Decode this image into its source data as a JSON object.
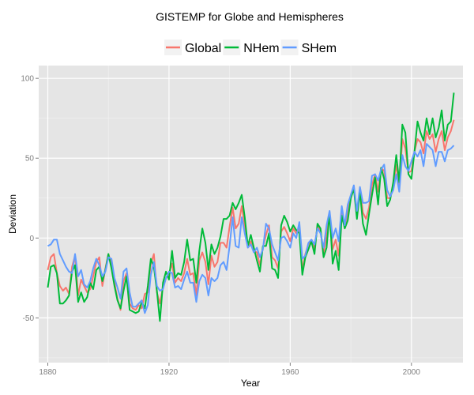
{
  "chart_data": {
    "type": "line",
    "title": "GISTEMP for Globe and Hemispheres",
    "xlabel": "Year",
    "ylabel": "Deviation",
    "xlim": [
      1877,
      2017
    ],
    "ylim": [
      -78,
      108
    ],
    "x_ticks": [
      1880,
      1920,
      1960,
      2000
    ],
    "y_ticks": [
      -50,
      0,
      50,
      100
    ],
    "grid": true,
    "legend": "top",
    "background": "#E5E5E5",
    "x": [
      1880,
      1881,
      1882,
      1883,
      1884,
      1885,
      1886,
      1887,
      1888,
      1889,
      1890,
      1891,
      1892,
      1893,
      1894,
      1895,
      1896,
      1897,
      1898,
      1899,
      1900,
      1901,
      1902,
      1903,
      1904,
      1905,
      1906,
      1907,
      1908,
      1909,
      1910,
      1911,
      1912,
      1913,
      1914,
      1915,
      1916,
      1917,
      1918,
      1919,
      1920,
      1921,
      1922,
      1923,
      1924,
      1925,
      1926,
      1927,
      1928,
      1929,
      1930,
      1931,
      1932,
      1933,
      1934,
      1935,
      1936,
      1937,
      1938,
      1939,
      1940,
      1941,
      1942,
      1943,
      1944,
      1945,
      1946,
      1947,
      1948,
      1949,
      1950,
      1951,
      1952,
      1953,
      1954,
      1955,
      1956,
      1957,
      1958,
      1959,
      1960,
      1961,
      1962,
      1963,
      1964,
      1965,
      1966,
      1967,
      1968,
      1969,
      1970,
      1971,
      1972,
      1973,
      1974,
      1975,
      1976,
      1977,
      1978,
      1979,
      1980,
      1981,
      1982,
      1983,
      1984,
      1985,
      1986,
      1987,
      1988,
      1989,
      1990,
      1991,
      1992,
      1993,
      1994,
      1995,
      1996,
      1997,
      1998,
      1999,
      2000,
      2001,
      2002,
      2003,
      2004,
      2005,
      2006,
      2007,
      2008,
      2009,
      2010,
      2011,
      2012,
      2013,
      2014
    ],
    "series": [
      {
        "name": "Global",
        "color": "#F8766D",
        "values": [
          -20,
          -12,
          -10,
          -22,
          -30,
          -33,
          -31,
          -35,
          -18,
          -11,
          -36,
          -26,
          -30,
          -34,
          -32,
          -24,
          -15,
          -12,
          -30,
          -19,
          -10,
          -16,
          -28,
          -38,
          -45,
          -27,
          -22,
          -41,
          -44,
          -45,
          -42,
          -44,
          -35,
          -34,
          -16,
          -10,
          -34,
          -41,
          -31,
          -25,
          -22,
          -16,
          -28,
          -25,
          -27,
          -22,
          -13,
          -23,
          -22,
          -36,
          -14,
          -9,
          -15,
          -29,
          -11,
          -18,
          -15,
          -3,
          -3,
          -6,
          7,
          19,
          6,
          9,
          20,
          8,
          -6,
          -2,
          -8,
          -9,
          -17,
          -6,
          2,
          8,
          -12,
          -14,
          -19,
          4,
          7,
          3,
          -2,
          6,
          3,
          6,
          -20,
          -10,
          -4,
          -1,
          -7,
          8,
          4,
          -9,
          1,
          16,
          -7,
          -1,
          -11,
          17,
          7,
          16,
          27,
          32,
          14,
          31,
          16,
          12,
          19,
          33,
          40,
          29,
          44,
          42,
          25,
          25,
          33,
          46,
          32,
          62,
          56,
          41,
          42,
          54,
          62,
          60,
          53,
          67,
          62,
          65,
          54,
          62,
          67,
          55,
          63,
          67,
          74
        ]
      },
      {
        "name": "NHem",
        "color": "#00BA38",
        "values": [
          -31,
          -18,
          -17,
          -22,
          -41,
          -41,
          -39,
          -36,
          -21,
          -17,
          -40,
          -34,
          -40,
          -37,
          -28,
          -32,
          -20,
          -18,
          -27,
          -20,
          -10,
          -19,
          -30,
          -39,
          -44,
          -33,
          -24,
          -45,
          -46,
          -47,
          -46,
          -40,
          -44,
          -30,
          -13,
          -18,
          -33,
          -52,
          -28,
          -21,
          -26,
          -8,
          -25,
          -22,
          -23,
          -15,
          -1,
          -14,
          -13,
          -28,
          -8,
          6,
          -3,
          -20,
          -4,
          -10,
          -6,
          1,
          12,
          12,
          14,
          22,
          18,
          22,
          27,
          13,
          -5,
          2,
          -6,
          -14,
          -21,
          -5,
          -5,
          3,
          -19,
          -20,
          -25,
          8,
          14,
          10,
          4,
          8,
          5,
          3,
          -23,
          -12,
          -7,
          -2,
          -10,
          9,
          6,
          -12,
          -6,
          16,
          -16,
          -8,
          -20,
          14,
          6,
          11,
          25,
          31,
          12,
          29,
          9,
          2,
          15,
          27,
          38,
          21,
          44,
          37,
          20,
          24,
          35,
          52,
          35,
          71,
          66,
          40,
          37,
          54,
          73,
          66,
          61,
          75,
          65,
          75,
          63,
          69,
          80,
          61,
          71,
          73,
          91
        ]
      },
      {
        "name": "SHem",
        "color": "#619CFF",
        "values": [
          -5,
          -4,
          -1,
          -1,
          -10,
          -14,
          -18,
          -21,
          -22,
          -10,
          -24,
          -20,
          -29,
          -31,
          -27,
          -19,
          -13,
          -17,
          -24,
          -21,
          -12,
          -13,
          -25,
          -31,
          -38,
          -21,
          -19,
          -34,
          -43,
          -43,
          -41,
          -39,
          -47,
          -42,
          -23,
          -15,
          -30,
          -33,
          -32,
          -25,
          -21,
          -22,
          -31,
          -30,
          -32,
          -26,
          -21,
          -28,
          -28,
          -40,
          -27,
          -23,
          -25,
          -36,
          -25,
          -27,
          -25,
          -17,
          -15,
          -20,
          -5,
          13,
          -5,
          -6,
          13,
          3,
          -6,
          -4,
          -9,
          -6,
          -12,
          -7,
          9,
          6,
          -4,
          -9,
          -14,
          0,
          1,
          -2,
          -6,
          3,
          0,
          10,
          -13,
          -11,
          -3,
          -1,
          -4,
          6,
          3,
          -6,
          8,
          17,
          0,
          6,
          -2,
          20,
          8,
          21,
          27,
          33,
          17,
          32,
          22,
          22,
          23,
          39,
          40,
          36,
          43,
          46,
          30,
          26,
          30,
          40,
          29,
          52,
          45,
          42,
          48,
          54,
          51,
          55,
          45,
          59,
          57,
          55,
          45,
          54,
          54,
          48,
          55,
          56,
          58
        ]
      }
    ]
  }
}
